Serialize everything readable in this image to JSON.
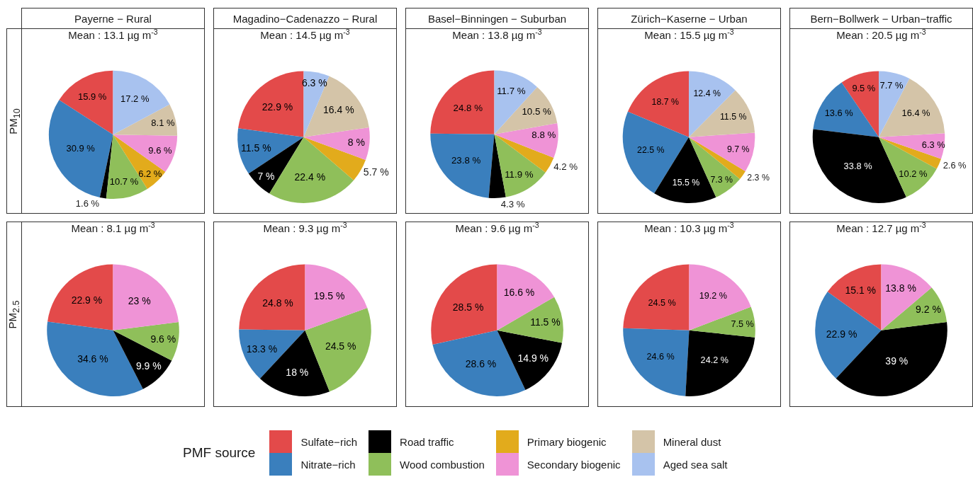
{
  "chart_data": [
    {
      "type": "pie",
      "title": "Payerne − Rural",
      "ylabel": "PM$_{10}$",
      "subtitle": "Mean : 13.1 µg m$^{-3}$",
      "legend": "bottom",
      "legend_title": "PMF source",
      "categories": [
        "Sulfate−rich",
        "Nitrate−rich",
        "Road traffic",
        "Wood combustion",
        "Primary biogenic",
        "Secondary biogenic",
        "Mineral dust",
        "Aged sea salt"
      ],
      "colors": [
        "#e34a4a",
        "#3a7fbd",
        "#000000",
        "#8fbf5a",
        "#e2ab1c",
        "#ef93d6",
        "#d4c4a8",
        "#a8c2ef"
      ],
      "values": [
        15.9,
        30.9,
        1.6,
        10.7,
        6.2,
        9.6,
        8.1,
        17.2
      ],
      "value_labels": [
        "15.9 %",
        "30.9 %",
        "1.6 %",
        "10.7 %",
        "6.2 %",
        "9.6 %",
        "8.1 %",
        "17.2 %"
      ]
    },
    {
      "type": "pie",
      "title": "Magadino−Cadenazzo − Rural",
      "subtitle": "Mean : 14.5 µg m$^{-3}$",
      "categories": [
        null,
        null,
        null,
        null,
        null,
        null,
        null,
        null
      ],
      "colors": [
        "#e34a4a",
        "#3a7fbd",
        "#000000",
        "#8fbf5a",
        "#e2ab1c",
        "#ef93d6",
        "#d4c4a8",
        "#a8c2ef"
      ],
      "values": [
        22.9,
        11.5,
        7,
        22.4,
        5.7,
        8,
        16.4,
        6.3
      ],
      "value_labels": [
        "22.9 %",
        "11.5 %",
        "7 %",
        "22.4 %",
        "5.7 %",
        "8 %",
        "16.4 %",
        "6.3 %"
      ]
    },
    {
      "type": "pie",
      "title": "Basel−Binningen − Suburban",
      "subtitle": "Mean : 13.8 µg m$^{-3}$",
      "categories": [
        null,
        null,
        null,
        null,
        null,
        null,
        null,
        null
      ],
      "colors": [
        "#e34a4a",
        "#3a7fbd",
        "#000000",
        "#8fbf5a",
        "#e2ab1c",
        "#ef93d6",
        "#d4c4a8",
        "#a8c2ef"
      ],
      "values": [
        24.8,
        23.8,
        4.3,
        11.9,
        4.2,
        8.8,
        10.5,
        11.7
      ],
      "value_labels": [
        "24.8 %",
        "23.8 %",
        "4.3 %",
        "11.9 %",
        "4.2 %",
        "8.8 %",
        "10.5 %",
        "11.7 %"
      ]
    },
    {
      "type": "pie",
      "title": "Zürich−Kaserne − Urban",
      "subtitle": "Mean : 15.5 µg m$^{-3}$",
      "categories": [
        null,
        null,
        null,
        null,
        null,
        null,
        null,
        null
      ],
      "colors": [
        "#e34a4a",
        "#3a7fbd",
        "#000000",
        "#8fbf5a",
        "#e2ab1c",
        "#ef93d6",
        "#d4c4a8",
        "#a8c2ef"
      ],
      "values": [
        18.7,
        22.5,
        15.5,
        7.3,
        2.3,
        9.7,
        11.5,
        12.4
      ],
      "value_labels": [
        "18.7 %",
        "22.5 %",
        "15.5 %",
        "7.3 %",
        "2.3 %",
        "9.7 %",
        "11.5 %",
        "12.4 %"
      ]
    },
    {
      "type": "pie",
      "title": "Bern−Bollwerk − Urban−traffic",
      "subtitle": "Mean : 20.5 µg m$^{-3}$",
      "categories": [
        null,
        null,
        null,
        null,
        null,
        null,
        null,
        null
      ],
      "colors": [
        "#e34a4a",
        "#3a7fbd",
        "#000000",
        "#8fbf5a",
        "#e2ab1c",
        "#ef93d6",
        "#d4c4a8",
        "#a8c2ef"
      ],
      "values": [
        9.5,
        13.6,
        33.8,
        10.2,
        2.6,
        6.3,
        16.4,
        7.7
      ],
      "value_labels": [
        "9.5 %",
        "13.6 %",
        "33.8 %",
        "10.2 %",
        "2.6 %",
        "6.3 %",
        "16.4 %",
        "7.7 %"
      ]
    },
    {
      "type": "pie",
      "ylabel": "PM$_{2.5}$",
      "subtitle": "Mean : 8.1 µg m$^{-3}$",
      "categories": [
        null,
        null,
        null,
        null,
        null
      ],
      "colors": [
        "#e34a4a",
        "#3a7fbd",
        "#000000",
        "#8fbf5a",
        "#ef93d6"
      ],
      "values": [
        22.9,
        34.6,
        9.9,
        9.6,
        23
      ],
      "value_labels": [
        "22.9 %",
        "34.6 %",
        "9.9 %",
        "9.6 %",
        "23 %"
      ]
    },
    {
      "type": "pie",
      "subtitle": "Mean : 9.3 µg m$^{-3}$",
      "categories": [
        null,
        null,
        null,
        null,
        null
      ],
      "colors": [
        "#e34a4a",
        "#3a7fbd",
        "#000000",
        "#8fbf5a",
        "#ef93d6"
      ],
      "values": [
        24.8,
        13.3,
        18,
        24.5,
        19.5
      ],
      "value_labels": [
        "24.8 %",
        "13.3 %",
        "18 %",
        "24.5 %",
        "19.5 %"
      ]
    },
    {
      "type": "pie",
      "subtitle": "Mean : 9.6 µg m$^{-3}$",
      "categories": [
        null,
        null,
        null,
        null,
        null
      ],
      "colors": [
        "#e34a4a",
        "#3a7fbd",
        "#000000",
        "#8fbf5a",
        "#ef93d6"
      ],
      "values": [
        28.5,
        28.6,
        14.9,
        11.5,
        16.6
      ],
      "value_labels": [
        "28.5 %",
        "28.6 %",
        "14.9 %",
        "11.5 %",
        "16.6 %"
      ]
    },
    {
      "type": "pie",
      "subtitle": "Mean : 10.3 µg m$^{-3}$",
      "categories": [
        null,
        null,
        null,
        null,
        null
      ],
      "colors": [
        "#e34a4a",
        "#3a7fbd",
        "#000000",
        "#8fbf5a",
        "#ef93d6"
      ],
      "values": [
        24.5,
        24.6,
        24.2,
        7.5,
        19.2
      ],
      "value_labels": [
        "24.5 %",
        "24.6 %",
        "24.2 %",
        "7.5 %",
        "19.2 %"
      ]
    },
    {
      "type": "pie",
      "subtitle": "Mean : 12.7 µg m$^{-3}$",
      "categories": [
        null,
        null,
        null,
        null,
        null
      ],
      "colors": [
        "#e34a4a",
        "#3a7fbd",
        "#000000",
        "#8fbf5a",
        "#ef93d6"
      ],
      "values": [
        15.1,
        22.9,
        39,
        9.2,
        13.8
      ],
      "value_labels": [
        "15.1 %",
        "22.9 %",
        "39 %",
        "9.2 %",
        "13.8 %"
      ]
    }
  ]
}
